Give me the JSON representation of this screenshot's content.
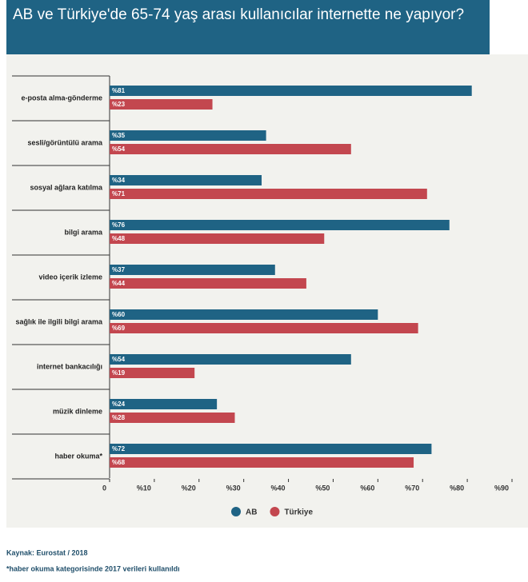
{
  "chart_data": {
    "type": "bar",
    "orientation": "horizontal",
    "title": "AB ve Türkiye'de 65-74 yaş arası kullanıcılar internette ne yapıyor?",
    "categories": [
      "e-posta alma-gönderme",
      "sesli/görüntülü arama",
      "sosyal ağlara katılma",
      "bilgi arama",
      "video içerik izleme",
      "sağlık ile ilgili bilgi arama",
      "internet bankacılığı",
      "müzik dinleme",
      "haber okuma*"
    ],
    "series": [
      {
        "name": "AB",
        "color": "#1f6384",
        "values": [
          81,
          35,
          34,
          76,
          37,
          60,
          54,
          24,
          72
        ],
        "value_labels": [
          "%81",
          "%35",
          "%34",
          "%76",
          "%37",
          "%60",
          "%54",
          "%24",
          "%72"
        ]
      },
      {
        "name": "Türkiye",
        "color": "#c3474f",
        "values": [
          23,
          54,
          71,
          48,
          44,
          69,
          19,
          28,
          68
        ],
        "value_labels": [
          "%23",
          "%54",
          "%71",
          "%48",
          "%44",
          "%69",
          "%19",
          "%28",
          "%68"
        ]
      }
    ],
    "xlim": [
      0,
      90
    ],
    "xticks": [
      0,
      {
        "value": 10,
        "label": "%10"
      },
      {
        "value": 20,
        "label": "%20"
      },
      {
        "value": 30,
        "label": "%30"
      },
      {
        "value": 40,
        "label": "%40"
      },
      {
        "value": 50,
        "label": "%50"
      },
      {
        "value": 60,
        "label": "%60"
      },
      {
        "value": 70,
        "label": "%70"
      },
      {
        "value": 80,
        "label": "%80"
      },
      {
        "value": 90,
        "label": "%90"
      }
    ],
    "legend": "bottom",
    "footnotes": [
      "Kaynak: Eurostat / 2018",
      "*haber okuma kategorisinde 2017 verileri kullanıldı"
    ]
  }
}
